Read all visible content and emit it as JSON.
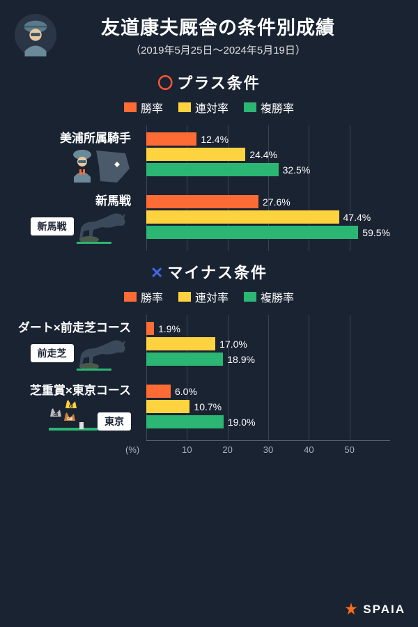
{
  "colors": {
    "background": "#1a2332",
    "bar1": "#ff6b35",
    "bar2": "#ffd23f",
    "bar3": "#2bb673",
    "grid": "#3a4654",
    "text": "#ffffff",
    "marker_o": "#ff5533",
    "marker_x": "#4169e1"
  },
  "header": {
    "title": "友道康夫厩舎の条件別成績",
    "subtitle": "（2019年5月25日〜2024年5月19日）"
  },
  "legend": {
    "s1": "勝率",
    "s2": "連対率",
    "s3": "複勝率"
  },
  "chart": {
    "xmax": 60,
    "ticks": [
      10,
      20,
      30,
      40,
      50
    ],
    "unit": "(%)"
  },
  "section_plus": {
    "marker": "〇",
    "label": "プラス条件",
    "groups": [
      {
        "name": "美浦所属騎手",
        "icon": "jockey-map",
        "bars": [
          {
            "v": 12.4,
            "label": "12.4%"
          },
          {
            "v": 24.4,
            "label": "24.4%"
          },
          {
            "v": 32.5,
            "label": "32.5%"
          }
        ]
      },
      {
        "name": "新馬戦",
        "icon": "horse-sign",
        "badge": "新馬戦",
        "bars": [
          {
            "v": 27.6,
            "label": "27.6%"
          },
          {
            "v": 47.4,
            "label": "47.4%"
          },
          {
            "v": 59.5,
            "label": "59.5%"
          }
        ]
      }
    ]
  },
  "section_minus": {
    "marker": "✕",
    "label": "マイナス条件",
    "groups": [
      {
        "name": "ダート×前走芝コース",
        "icon": "horse-sign",
        "badge": "前走芝",
        "bars": [
          {
            "v": 1.9,
            "label": "1.9%"
          },
          {
            "v": 17.0,
            "label": "17.0%"
          },
          {
            "v": 18.9,
            "label": "18.9%"
          }
        ]
      },
      {
        "name": "芝重賞×東京コース",
        "icon": "crowns",
        "badge": "東京",
        "bars": [
          {
            "v": 6.0,
            "label": "6.0%"
          },
          {
            "v": 10.7,
            "label": "10.7%"
          },
          {
            "v": 19.0,
            "label": "19.0%"
          }
        ]
      }
    ]
  },
  "watermark": "SPAIA"
}
